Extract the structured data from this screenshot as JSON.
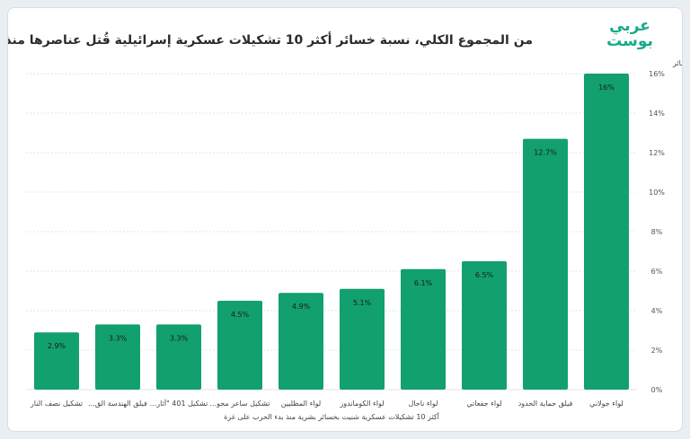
{
  "header": {
    "title": "من المجموع الكلي، نسبة خسائر أكثر 10 تشكيلات عسكرية إسرائيلية قُتل عناصرها منذ بداية الحرب",
    "logo_line1": "عربي",
    "logo_line2": "بوست"
  },
  "colors": {
    "bar": "#12a06e",
    "brand": "#19a98a",
    "grid": "#e6e6e6"
  },
  "chart_data": {
    "type": "bar",
    "title": "من المجموع الكلي، نسبة خسائر أكثر 10 تشكيلات عسكرية إسرائيلية قُتل عناصرها منذ بداية الحرب",
    "xlabel": "أكثر 10 تشكيلات عسكرية شنيت بخسائر بشرية منذ بدء الحرب على غزة",
    "ylabel": "نسبة الخسائر",
    "ylim": [
      0,
      16
    ],
    "yticks": [
      0,
      2,
      4,
      6,
      8,
      10,
      12,
      14,
      16
    ],
    "ytick_labels": [
      "0%",
      "2%",
      "4%",
      "6%",
      "8%",
      "10%",
      "12%",
      "14%",
      "16%"
    ],
    "categories": [
      "تشكيل نصف النار",
      "فيلق الهندسة الق...",
      "تشكيل 401 \"آثار...",
      "تشكيل ساعر مجو...",
      "لواء المظليين",
      "لواء الكوماندوز",
      "لواء ناحال",
      "لواء جفعاتي",
      "فيلق حماية الحدود",
      "لواء جولاني"
    ],
    "values": [
      2.9,
      3.3,
      3.3,
      4.5,
      4.9,
      5.1,
      6.1,
      6.5,
      12.7,
      16
    ],
    "data_labels": [
      "2.9%",
      "3.3%",
      "3.3%",
      "4.5%",
      "4.9%",
      "5.1%",
      "6.1%",
      "6.5%",
      "12.7%",
      "16%"
    ],
    "grid": true,
    "y_axis_side": "right"
  }
}
